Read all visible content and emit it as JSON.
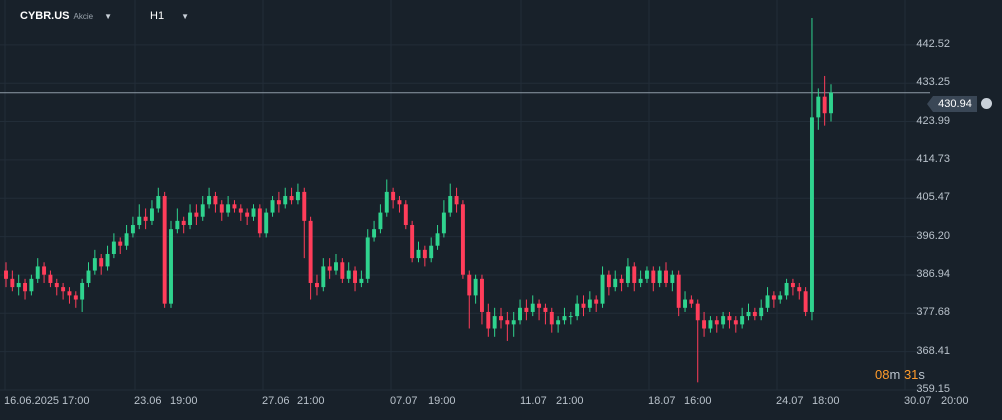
{
  "header": {
    "symbol": "CYBR.US",
    "asset_type": "Akcie",
    "timeframe": "H1"
  },
  "price": {
    "current": "430.94",
    "timer_minutes": "08",
    "timer_minutes_unit": "m",
    "timer_seconds": "31",
    "timer_seconds_unit": "s"
  },
  "colors": {
    "background": "#18212a",
    "bull": "#2fd38e",
    "bear": "#ff3d5a",
    "grid": "#222d38",
    "price_line": "#8e9aa6",
    "timer": "#ff9b2a"
  },
  "chart_data": {
    "type": "candlestick",
    "ylim": [
      359.15,
      449
    ],
    "y_ticks": [
      "442.52",
      "433.25",
      "423.99",
      "414.73",
      "405.47",
      "396.20",
      "386.94",
      "377.68",
      "368.41",
      "359.15"
    ],
    "x_ticks": [
      "16.06.2025",
      "17:00",
      "23.06",
      "19:00",
      "27.06",
      "21:00",
      "07.07",
      "19:00",
      "11.07",
      "21:00",
      "18.07",
      "16:00",
      "24.07",
      "18:00",
      "30.07",
      "20:00"
    ],
    "last_price": 430.94,
    "grid": true,
    "candles": [
      [
        388,
        386,
        390,
        384
      ],
      [
        386,
        384,
        388,
        383
      ],
      [
        384,
        385,
        387,
        382
      ],
      [
        385,
        383,
        386,
        381
      ],
      [
        383,
        386,
        387,
        382
      ],
      [
        386,
        389,
        391,
        385
      ],
      [
        389,
        387,
        390,
        385
      ],
      [
        387,
        385,
        388,
        384
      ],
      [
        385,
        384,
        386,
        382
      ],
      [
        384,
        383,
        385,
        381
      ],
      [
        383,
        382,
        384,
        380
      ],
      [
        382,
        381,
        383,
        379
      ],
      [
        381,
        385,
        386,
        378
      ],
      [
        385,
        388,
        390,
        384
      ],
      [
        388,
        391,
        393,
        387
      ],
      [
        391,
        389,
        392,
        387
      ],
      [
        389,
        392,
        394,
        388
      ],
      [
        392,
        395,
        397,
        391
      ],
      [
        395,
        394,
        396,
        392
      ],
      [
        394,
        397,
        399,
        393
      ],
      [
        397,
        399,
        401,
        396
      ],
      [
        399,
        401,
        404,
        398
      ],
      [
        401,
        400,
        403,
        398
      ],
      [
        400,
        403,
        405,
        399
      ],
      [
        403,
        406,
        408,
        402
      ],
      [
        406,
        380,
        407,
        379
      ],
      [
        380,
        398,
        400,
        379
      ],
      [
        398,
        400,
        403,
        397
      ],
      [
        400,
        399,
        401,
        397
      ],
      [
        399,
        402,
        404,
        398
      ],
      [
        402,
        401,
        404,
        399
      ],
      [
        401,
        404,
        406,
        400
      ],
      [
        404,
        406,
        408,
        403
      ],
      [
        406,
        404,
        407,
        402
      ],
      [
        404,
        402,
        405,
        400
      ],
      [
        402,
        404,
        406,
        401
      ],
      [
        404,
        403,
        405,
        402
      ],
      [
        403,
        402,
        404,
        400
      ],
      [
        402,
        401,
        403,
        399
      ],
      [
        401,
        403,
        404,
        400
      ],
      [
        403,
        397,
        404,
        396
      ],
      [
        397,
        402,
        403,
        396
      ],
      [
        402,
        405,
        406,
        401
      ],
      [
        405,
        404,
        407,
        402
      ],
      [
        404,
        406,
        408,
        403
      ],
      [
        406,
        405,
        408,
        404
      ],
      [
        405,
        407,
        409,
        404
      ],
      [
        407,
        400,
        408,
        391
      ],
      [
        400,
        385,
        401,
        381
      ],
      [
        385,
        384,
        387,
        382
      ],
      [
        384,
        389,
        391,
        383
      ],
      [
        389,
        388,
        391,
        386
      ],
      [
        388,
        390,
        392,
        387
      ],
      [
        390,
        386,
        391,
        385
      ],
      [
        386,
        388,
        390,
        385
      ],
      [
        388,
        385,
        389,
        383
      ],
      [
        385,
        386,
        388,
        384
      ],
      [
        386,
        396,
        398,
        385
      ],
      [
        396,
        398,
        400,
        395
      ],
      [
        398,
        402,
        404,
        397
      ],
      [
        402,
        407,
        410,
        401
      ],
      [
        407,
        405,
        408,
        403
      ],
      [
        405,
        404,
        406,
        402
      ],
      [
        404,
        399,
        405,
        398
      ],
      [
        399,
        391,
        400,
        390
      ],
      [
        391,
        393,
        395,
        390
      ],
      [
        393,
        391,
        394,
        389
      ],
      [
        391,
        394,
        396,
        390
      ],
      [
        394,
        397,
        399,
        393
      ],
      [
        397,
        402,
        405,
        396
      ],
      [
        402,
        406,
        409,
        401
      ],
      [
        406,
        404,
        408,
        402
      ],
      [
        404,
        387,
        405,
        386
      ],
      [
        387,
        382,
        388,
        374
      ],
      [
        382,
        386,
        387,
        380
      ],
      [
        386,
        378,
        387,
        375
      ],
      [
        378,
        374,
        380,
        372
      ],
      [
        374,
        377,
        379,
        372
      ],
      [
        377,
        376,
        379,
        374
      ],
      [
        376,
        375,
        378,
        371
      ],
      [
        375,
        376,
        378,
        372
      ],
      [
        376,
        379,
        381,
        375
      ],
      [
        379,
        378,
        381,
        376
      ],
      [
        378,
        380,
        382,
        377
      ],
      [
        380,
        379,
        381,
        376
      ],
      [
        379,
        378,
        380,
        375
      ],
      [
        378,
        375,
        379,
        373
      ],
      [
        375,
        376,
        377,
        373
      ],
      [
        376,
        377,
        379,
        375
      ],
      [
        377,
        377,
        378,
        375
      ],
      [
        377,
        380,
        382,
        376
      ],
      [
        380,
        379,
        382,
        377
      ],
      [
        379,
        381,
        383,
        378
      ],
      [
        381,
        380,
        382,
        378
      ],
      [
        380,
        387,
        389,
        379
      ],
      [
        387,
        384,
        388,
        382
      ],
      [
        384,
        386,
        388,
        383
      ],
      [
        386,
        385,
        387,
        383
      ],
      [
        385,
        389,
        391,
        384
      ],
      [
        389,
        385,
        390,
        383
      ],
      [
        385,
        386,
        388,
        384
      ],
      [
        386,
        388,
        389,
        385
      ],
      [
        388,
        385,
        389,
        383
      ],
      [
        385,
        388,
        389,
        384
      ],
      [
        388,
        385,
        390,
        384
      ],
      [
        385,
        387,
        388,
        383
      ],
      [
        387,
        379,
        388,
        377
      ],
      [
        379,
        381,
        383,
        378
      ],
      [
        381,
        380,
        382,
        379
      ],
      [
        380,
        376,
        381,
        361
      ],
      [
        376,
        374,
        378,
        372
      ],
      [
        374,
        376,
        377,
        373
      ],
      [
        376,
        375,
        377,
        373
      ],
      [
        375,
        377,
        378,
        374
      ],
      [
        377,
        376,
        378,
        374
      ],
      [
        376,
        375,
        377,
        373
      ],
      [
        375,
        377,
        379,
        374
      ],
      [
        377,
        378,
        380,
        376
      ],
      [
        378,
        377,
        379,
        376
      ],
      [
        377,
        379,
        381,
        376
      ],
      [
        379,
        382,
        384,
        378
      ],
      [
        382,
        381,
        383,
        379
      ],
      [
        381,
        382,
        383,
        380
      ],
      [
        382,
        385,
        386,
        381
      ],
      [
        385,
        384,
        386,
        382
      ],
      [
        384,
        383,
        385,
        381
      ],
      [
        383,
        378,
        384,
        377
      ],
      [
        378,
        425,
        449,
        376
      ],
      [
        425,
        430,
        432,
        422
      ],
      [
        430,
        426,
        435,
        423
      ],
      [
        426,
        431,
        433,
        424
      ]
    ]
  }
}
